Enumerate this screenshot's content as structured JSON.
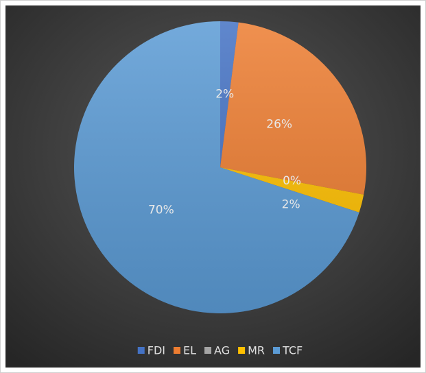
{
  "chart_data": {
    "type": "pie",
    "categories": [
      "FDI",
      "EL",
      "AG",
      "MR",
      "TCF"
    ],
    "values": [
      2,
      26,
      0,
      2,
      70
    ],
    "value_labels": [
      "2%",
      "26%",
      "0%",
      "2%",
      "70%"
    ],
    "colors": [
      "#4472c4",
      "#ed7d31",
      "#a5a5a5",
      "#ffc000",
      "#5b9bd5"
    ],
    "legend": "bottom"
  }
}
